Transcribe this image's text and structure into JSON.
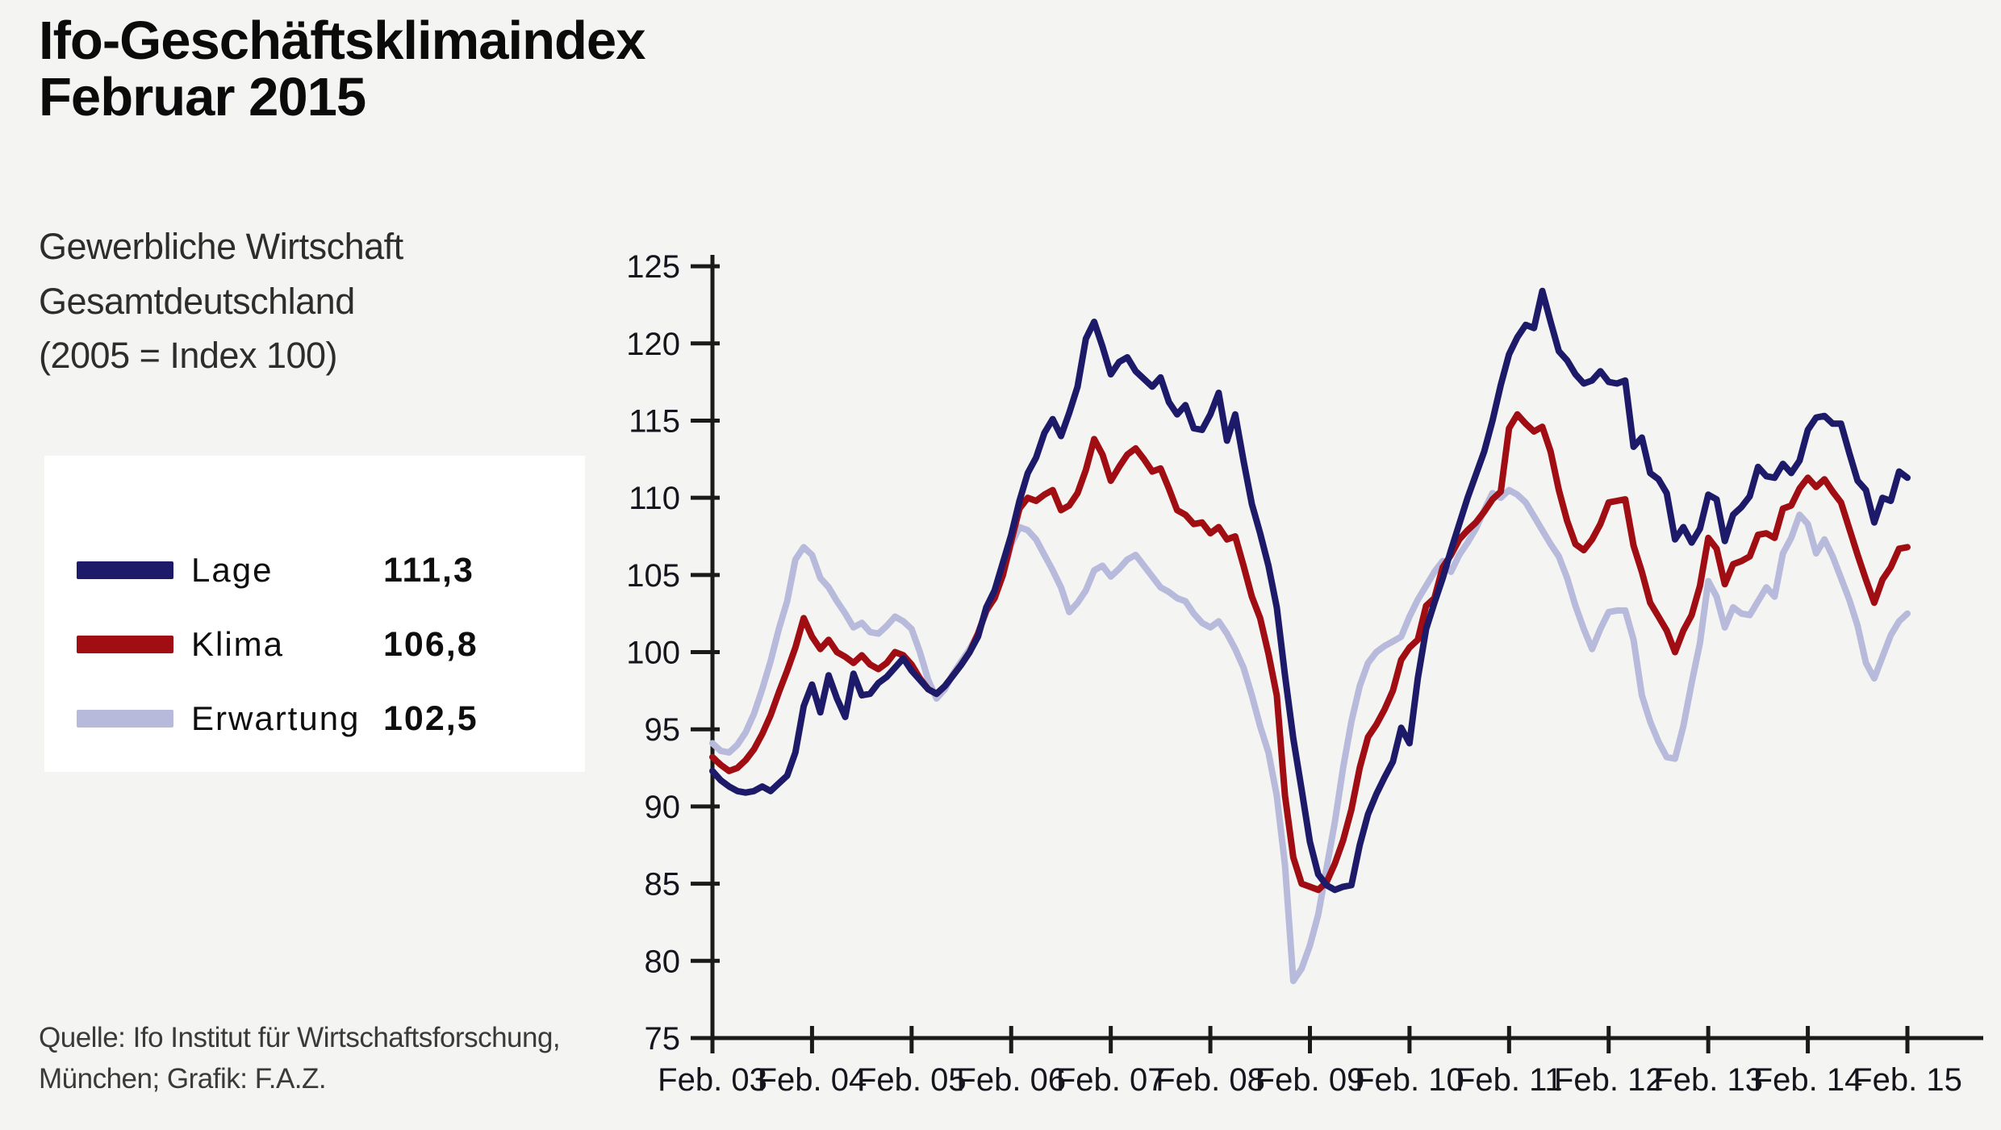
{
  "header": {
    "title_line1": "Ifo-Geschäftsklimaindex",
    "title_line2": "Februar 2015",
    "subtitle_lines": [
      "Gewerbliche Wirtschaft",
      "Gesamtdeutschland",
      "(2005 = Index 100)"
    ]
  },
  "legend": {
    "items": [
      {
        "label": "Lage",
        "value": "111,3",
        "color": "#1d1a6a"
      },
      {
        "label": "Klima",
        "value": "106,8",
        "color": "#a00d12"
      },
      {
        "label": "Erwartung",
        "value": "102,5",
        "color": "#b8badc"
      }
    ]
  },
  "source": {
    "line1": "Quelle: Ifo Institut für Wirtschaftsforschung,",
    "line2": "München; Grafik: F.A.Z."
  },
  "chart_data": {
    "type": "line",
    "title": "Ifo-Geschäftsklimaindex Februar 2015",
    "xlabel": "",
    "ylabel": "",
    "ylim": [
      75,
      125
    ],
    "y_ticks": [
      75,
      80,
      85,
      90,
      95,
      100,
      105,
      110,
      115,
      120,
      125
    ],
    "x_tick_labels": [
      "Feb. 03",
      "Feb. 04",
      "Feb. 05",
      "Feb. 06",
      "Feb. 07",
      "Feb. 08",
      "Feb. 09",
      "Feb. 10",
      "Feb. 11",
      "Feb. 12",
      "Feb. 13",
      "Feb. 14",
      "Feb. 15"
    ],
    "x_start_month": "2003-02",
    "x_end_month": "2015-02",
    "grid": false,
    "legend_position": "left",
    "series": [
      {
        "name": "Lage",
        "color": "#1d1a6a",
        "values": [
          92.3,
          91.7,
          91.3,
          91.0,
          90.9,
          91.0,
          91.3,
          91.0,
          91.5,
          92.0,
          93.5,
          96.5,
          97.9,
          96.1,
          98.5,
          97.0,
          95.8,
          98.6,
          97.2,
          97.3,
          98.0,
          98.4,
          99.0,
          99.6,
          98.8,
          98.2,
          97.6,
          97.3,
          97.8,
          98.5,
          99.2,
          100.0,
          101.0,
          102.9,
          104.0,
          105.8,
          107.6,
          109.8,
          111.6,
          112.6,
          114.2,
          115.1,
          114.0,
          115.5,
          117.2,
          120.3,
          121.4,
          119.8,
          118.0,
          118.8,
          119.1,
          118.2,
          117.7,
          117.2,
          117.8,
          116.2,
          115.4,
          116.0,
          114.5,
          114.4,
          115.4,
          116.8,
          113.7,
          115.4,
          112.4,
          109.6,
          107.7,
          105.6,
          102.9,
          98.5,
          94.4,
          91.1,
          87.7,
          85.6,
          84.9,
          84.6,
          84.8,
          84.9,
          87.5,
          89.5,
          90.8,
          91.9,
          92.9,
          95.1,
          94.1,
          98.3,
          101.5,
          103.2,
          104.8,
          106.6,
          108.3,
          110.0,
          111.5,
          113.0,
          115.0,
          117.3,
          119.3,
          120.4,
          121.2,
          121.0,
          123.4,
          121.4,
          119.5,
          118.9,
          118.0,
          117.4,
          117.6,
          118.2,
          117.5,
          117.4,
          117.6,
          113.3,
          113.9,
          111.6,
          111.2,
          110.3,
          107.3,
          108.1,
          107.1,
          108.0,
          110.2,
          109.9,
          107.2,
          108.9,
          109.4,
          110.1,
          112.0,
          111.4,
          111.3,
          112.2,
          111.6,
          112.4,
          114.4,
          115.2,
          115.3,
          114.8,
          114.8,
          112.9,
          111.1,
          110.5,
          108.4,
          110.0,
          109.8,
          111.7,
          111.3
        ]
      },
      {
        "name": "Klima",
        "color": "#a00d12",
        "values": [
          93.2,
          92.7,
          92.3,
          92.5,
          93.0,
          93.7,
          94.7,
          95.9,
          97.4,
          98.8,
          100.3,
          102.2,
          101.0,
          100.2,
          100.8,
          100.0,
          99.7,
          99.3,
          99.8,
          99.2,
          98.9,
          99.3,
          100.0,
          99.8,
          99.2,
          98.3,
          97.6,
          97.3,
          97.8,
          98.5,
          99.2,
          100.0,
          101.2,
          102.7,
          103.5,
          105.0,
          107.2,
          109.3,
          110.0,
          109.8,
          110.2,
          110.5,
          109.2,
          109.5,
          110.3,
          111.8,
          113.8,
          112.8,
          111.1,
          112.0,
          112.8,
          113.2,
          112.5,
          111.7,
          111.9,
          110.6,
          109.2,
          108.9,
          108.3,
          108.4,
          107.7,
          108.1,
          107.3,
          107.5,
          105.6,
          103.6,
          102.2,
          99.9,
          97.2,
          90.7,
          86.7,
          85.0,
          84.8,
          84.6,
          85.1,
          86.3,
          87.8,
          89.8,
          92.5,
          94.5,
          95.3,
          96.3,
          97.5,
          99.5,
          100.3,
          100.8,
          103.0,
          103.5,
          105.5,
          106.3,
          107.3,
          107.9,
          108.4,
          109.1,
          109.9,
          110.4,
          114.5,
          115.4,
          114.8,
          114.3,
          114.6,
          113.0,
          110.5,
          108.5,
          107.0,
          106.6,
          107.3,
          108.3,
          109.7,
          109.8,
          109.9,
          106.9,
          105.2,
          103.2,
          102.3,
          101.4,
          100.0,
          101.4,
          102.4,
          104.3,
          107.4,
          106.7,
          104.4,
          105.7,
          105.9,
          106.2,
          107.6,
          107.7,
          107.4,
          109.3,
          109.5,
          110.6,
          111.3,
          110.7,
          111.2,
          110.4,
          109.7,
          108.0,
          106.3,
          104.7,
          103.2,
          104.7,
          105.5,
          106.7,
          106.8
        ]
      },
      {
        "name": "Erwartung",
        "color": "#b8badc",
        "values": [
          94.1,
          93.6,
          93.5,
          94.0,
          94.8,
          96.0,
          97.6,
          99.4,
          101.5,
          103.3,
          106.0,
          106.8,
          106.3,
          104.8,
          104.2,
          103.3,
          102.5,
          101.6,
          101.9,
          101.3,
          101.2,
          101.7,
          102.3,
          102.0,
          101.5,
          100.0,
          98.2,
          97.0,
          97.6,
          98.6,
          99.4,
          100.2,
          101.2,
          102.6,
          103.6,
          105.0,
          107.0,
          108.1,
          107.9,
          107.3,
          106.3,
          105.3,
          104.2,
          102.6,
          103.2,
          104.0,
          105.3,
          105.6,
          104.9,
          105.4,
          106.0,
          106.3,
          105.6,
          104.9,
          104.2,
          103.9,
          103.5,
          103.3,
          102.5,
          101.9,
          101.6,
          102.0,
          101.2,
          100.2,
          99.0,
          97.2,
          95.2,
          93.5,
          90.7,
          86.2,
          78.7,
          79.5,
          81.0,
          83.0,
          86.0,
          89.0,
          92.5,
          95.5,
          97.8,
          99.3,
          100.0,
          100.4,
          100.7,
          101.0,
          102.3,
          103.4,
          104.3,
          105.2,
          105.9,
          105.2,
          106.3,
          107.1,
          108.0,
          109.2,
          110.3,
          110.0,
          110.5,
          110.2,
          109.7,
          108.8,
          107.9,
          107.0,
          106.2,
          104.8,
          103.0,
          101.5,
          100.2,
          101.5,
          102.6,
          102.7,
          102.7,
          100.8,
          97.2,
          95.5,
          94.2,
          93.2,
          93.1,
          95.2,
          98.0,
          100.6,
          104.6,
          103.6,
          101.6,
          102.9,
          102.5,
          102.4,
          103.3,
          104.2,
          103.6,
          106.4,
          107.4,
          108.9,
          108.3,
          106.4,
          107.3,
          106.2,
          104.8,
          103.4,
          101.7,
          99.3,
          98.3,
          99.7,
          101.1,
          102.0,
          102.5
        ]
      }
    ],
    "annotations": {
      "latest_values": {
        "Lage": 111.3,
        "Klima": 106.8,
        "Erwartung": 102.5
      }
    }
  }
}
